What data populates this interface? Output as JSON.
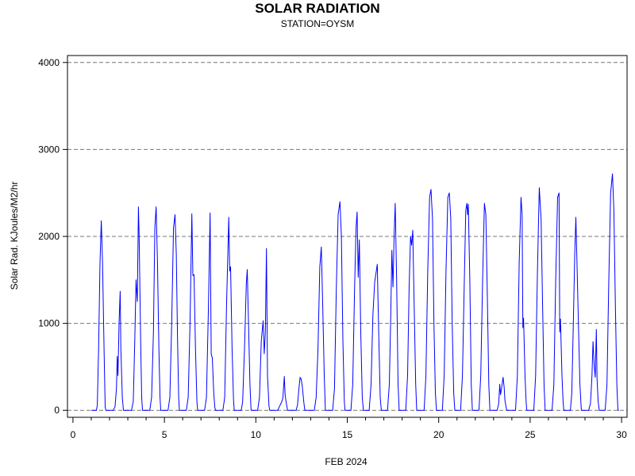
{
  "chart_data": {
    "type": "line",
    "title": "SOLAR RADIATION",
    "subtitle": "STATION=OYSM",
    "xlabel": "FEB 2024",
    "ylabel": "Solar Rad. KJoules/M2/hr",
    "xlim": [
      -0.3,
      30.3
    ],
    "ylim": [
      -80,
      4080
    ],
    "xticks": [
      0,
      5,
      10,
      15,
      20,
      25,
      30
    ],
    "yticks": [
      0,
      1000,
      2000,
      3000,
      4000
    ],
    "grid": "horizontal dashed",
    "line_color": "#0000ff",
    "series": [
      {
        "values": [
          [
            1.0,
            0
          ],
          [
            1.28,
            0
          ],
          [
            1.33,
            60
          ],
          [
            1.4,
            700
          ],
          [
            1.48,
            1700
          ],
          [
            1.55,
            2180
          ],
          [
            1.62,
            1700
          ],
          [
            1.7,
            700
          ],
          [
            1.76,
            40
          ],
          [
            1.8,
            0
          ],
          [
            2.2,
            0
          ],
          [
            2.3,
            40
          ],
          [
            2.38,
            250
          ],
          [
            2.42,
            620
          ],
          [
            2.46,
            400
          ],
          [
            2.52,
            1000
          ],
          [
            2.58,
            1370
          ],
          [
            2.62,
            700
          ],
          [
            2.7,
            150
          ],
          [
            2.76,
            0
          ],
          [
            3.2,
            0
          ],
          [
            3.3,
            100
          ],
          [
            3.38,
            800
          ],
          [
            3.45,
            1500
          ],
          [
            3.52,
            1250
          ],
          [
            3.58,
            2340
          ],
          [
            3.62,
            2000
          ],
          [
            3.7,
            800
          ],
          [
            3.76,
            150
          ],
          [
            3.8,
            0
          ],
          [
            4.2,
            0
          ],
          [
            4.3,
            150
          ],
          [
            4.4,
            900
          ],
          [
            4.48,
            2100
          ],
          [
            4.55,
            2340
          ],
          [
            4.62,
            1700
          ],
          [
            4.7,
            700
          ],
          [
            4.76,
            150
          ],
          [
            4.8,
            0
          ],
          [
            5.2,
            0
          ],
          [
            5.3,
            150
          ],
          [
            5.4,
            1000
          ],
          [
            5.5,
            2100
          ],
          [
            5.58,
            2250
          ],
          [
            5.65,
            1800
          ],
          [
            5.72,
            800
          ],
          [
            5.78,
            150
          ],
          [
            5.82,
            0
          ],
          [
            6.2,
            0
          ],
          [
            6.3,
            150
          ],
          [
            6.4,
            1000
          ],
          [
            6.5,
            2260
          ],
          [
            6.56,
            1550
          ],
          [
            6.62,
            1560
          ],
          [
            6.7,
            700
          ],
          [
            6.78,
            100
          ],
          [
            6.82,
            0
          ],
          [
            7.2,
            0
          ],
          [
            7.3,
            150
          ],
          [
            7.4,
            1100
          ],
          [
            7.5,
            2270
          ],
          [
            7.56,
            650
          ],
          [
            7.62,
            600
          ],
          [
            7.7,
            200
          ],
          [
            7.76,
            30
          ],
          [
            7.8,
            0
          ],
          [
            8.2,
            0
          ],
          [
            8.3,
            150
          ],
          [
            8.4,
            1200
          ],
          [
            8.52,
            2220
          ],
          [
            8.57,
            1600
          ],
          [
            8.62,
            1650
          ],
          [
            8.7,
            700
          ],
          [
            8.78,
            120
          ],
          [
            8.82,
            0
          ],
          [
            9.2,
            0
          ],
          [
            9.28,
            100
          ],
          [
            9.38,
            700
          ],
          [
            9.48,
            1450
          ],
          [
            9.53,
            1620
          ],
          [
            9.6,
            1000
          ],
          [
            9.68,
            300
          ],
          [
            9.74,
            0
          ],
          [
            10.1,
            0
          ],
          [
            10.2,
            150
          ],
          [
            10.3,
            800
          ],
          [
            10.4,
            1030
          ],
          [
            10.46,
            650
          ],
          [
            10.52,
            900
          ],
          [
            10.58,
            1860
          ],
          [
            10.64,
            400
          ],
          [
            10.72,
            50
          ],
          [
            10.76,
            0
          ],
          [
            11.2,
            0
          ],
          [
            11.3,
            50
          ],
          [
            11.4,
            90
          ],
          [
            11.48,
            140
          ],
          [
            11.56,
            390
          ],
          [
            11.6,
            180
          ],
          [
            11.64,
            120
          ],
          [
            11.7,
            40
          ],
          [
            11.74,
            0
          ],
          [
            12.2,
            0
          ],
          [
            12.28,
            60
          ],
          [
            12.36,
            260
          ],
          [
            12.42,
            380
          ],
          [
            12.48,
            360
          ],
          [
            12.54,
            280
          ],
          [
            12.62,
            100
          ],
          [
            12.68,
            0
          ],
          [
            13.2,
            0
          ],
          [
            13.3,
            150
          ],
          [
            13.4,
            700
          ],
          [
            13.5,
            1650
          ],
          [
            13.58,
            1880
          ],
          [
            13.66,
            1200
          ],
          [
            13.74,
            400
          ],
          [
            13.8,
            0
          ],
          [
            14.2,
            0
          ],
          [
            14.3,
            250
          ],
          [
            14.4,
            1400
          ],
          [
            14.5,
            2250
          ],
          [
            14.6,
            2400
          ],
          [
            14.68,
            2000
          ],
          [
            14.76,
            800
          ],
          [
            14.84,
            100
          ],
          [
            14.88,
            0
          ],
          [
            15.2,
            0
          ],
          [
            15.3,
            300
          ],
          [
            15.4,
            1400
          ],
          [
            15.48,
            2100
          ],
          [
            15.54,
            2280
          ],
          [
            15.6,
            1530
          ],
          [
            15.66,
            1960
          ],
          [
            15.74,
            900
          ],
          [
            15.82,
            150
          ],
          [
            15.88,
            0
          ],
          [
            16.2,
            0
          ],
          [
            16.3,
            300
          ],
          [
            16.4,
            1100
          ],
          [
            16.5,
            1480
          ],
          [
            16.58,
            1590
          ],
          [
            16.64,
            1680
          ],
          [
            16.72,
            900
          ],
          [
            16.8,
            150
          ],
          [
            16.86,
            0
          ],
          [
            17.2,
            0
          ],
          [
            17.3,
            300
          ],
          [
            17.38,
            1100
          ],
          [
            17.44,
            1840
          ],
          [
            17.5,
            1420
          ],
          [
            17.56,
            2000
          ],
          [
            17.62,
            2380
          ],
          [
            17.7,
            1500
          ],
          [
            17.78,
            300
          ],
          [
            17.84,
            0
          ],
          [
            18.2,
            0
          ],
          [
            18.3,
            400
          ],
          [
            18.38,
            1400
          ],
          [
            18.46,
            2000
          ],
          [
            18.52,
            1900
          ],
          [
            18.58,
            2070
          ],
          [
            18.66,
            1200
          ],
          [
            18.74,
            300
          ],
          [
            18.8,
            0
          ],
          [
            19.2,
            0
          ],
          [
            19.3,
            400
          ],
          [
            19.4,
            1600
          ],
          [
            19.5,
            2450
          ],
          [
            19.58,
            2540
          ],
          [
            19.66,
            2200
          ],
          [
            19.74,
            1000
          ],
          [
            19.82,
            200
          ],
          [
            19.88,
            0
          ],
          [
            20.2,
            0
          ],
          [
            20.3,
            400
          ],
          [
            20.4,
            1600
          ],
          [
            20.5,
            2450
          ],
          [
            20.58,
            2500
          ],
          [
            20.66,
            2200
          ],
          [
            20.74,
            1000
          ],
          [
            20.82,
            200
          ],
          [
            20.88,
            0
          ],
          [
            21.2,
            0
          ],
          [
            21.3,
            400
          ],
          [
            21.4,
            1500
          ],
          [
            21.48,
            2300
          ],
          [
            21.54,
            2380
          ],
          [
            21.58,
            2250
          ],
          [
            21.62,
            2370
          ],
          [
            21.7,
            1500
          ],
          [
            21.78,
            300
          ],
          [
            21.84,
            0
          ],
          [
            22.2,
            0
          ],
          [
            22.3,
            400
          ],
          [
            22.4,
            1500
          ],
          [
            22.5,
            2380
          ],
          [
            22.58,
            2250
          ],
          [
            22.66,
            1300
          ],
          [
            22.74,
            300
          ],
          [
            22.8,
            0
          ],
          [
            23.2,
            0
          ],
          [
            23.28,
            80
          ],
          [
            23.34,
            300
          ],
          [
            23.38,
            180
          ],
          [
            23.44,
            260
          ],
          [
            23.52,
            380
          ],
          [
            23.58,
            260
          ],
          [
            23.62,
            120
          ],
          [
            23.68,
            40
          ],
          [
            23.72,
            0
          ],
          [
            24.2,
            0
          ],
          [
            24.3,
            400
          ],
          [
            24.4,
            1700
          ],
          [
            24.5,
            2450
          ],
          [
            24.56,
            2250
          ],
          [
            24.6,
            950
          ],
          [
            24.64,
            1060
          ],
          [
            24.72,
            400
          ],
          [
            24.78,
            100
          ],
          [
            24.82,
            0
          ],
          [
            25.2,
            0
          ],
          [
            25.3,
            400
          ],
          [
            25.4,
            1600
          ],
          [
            25.5,
            2560
          ],
          [
            25.6,
            2200
          ],
          [
            25.68,
            1200
          ],
          [
            25.76,
            300
          ],
          [
            25.82,
            0
          ],
          [
            26.2,
            0
          ],
          [
            26.3,
            300
          ],
          [
            26.4,
            1500
          ],
          [
            26.5,
            2450
          ],
          [
            26.58,
            2500
          ],
          [
            26.62,
            900
          ],
          [
            26.66,
            1050
          ],
          [
            26.74,
            400
          ],
          [
            26.8,
            100
          ],
          [
            26.84,
            0
          ],
          [
            27.2,
            0
          ],
          [
            27.28,
            200
          ],
          [
            27.36,
            1000
          ],
          [
            27.44,
            1800
          ],
          [
            27.5,
            2220
          ],
          [
            27.56,
            1700
          ],
          [
            27.64,
            1000
          ],
          [
            27.72,
            300
          ],
          [
            27.8,
            0
          ],
          [
            28.2,
            0
          ],
          [
            28.3,
            80
          ],
          [
            28.38,
            400
          ],
          [
            28.44,
            790
          ],
          [
            28.5,
            530
          ],
          [
            28.56,
            380
          ],
          [
            28.62,
            930
          ],
          [
            28.66,
            360
          ],
          [
            28.72,
            100
          ],
          [
            28.78,
            0
          ],
          [
            29.1,
            0
          ],
          [
            29.2,
            300
          ],
          [
            29.3,
            1500
          ],
          [
            29.4,
            2500
          ],
          [
            29.5,
            2720
          ],
          [
            29.58,
            2300
          ],
          [
            29.66,
            1200
          ],
          [
            29.74,
            300
          ],
          [
            29.8,
            0
          ],
          [
            29.85,
            0
          ]
        ]
      }
    ]
  }
}
